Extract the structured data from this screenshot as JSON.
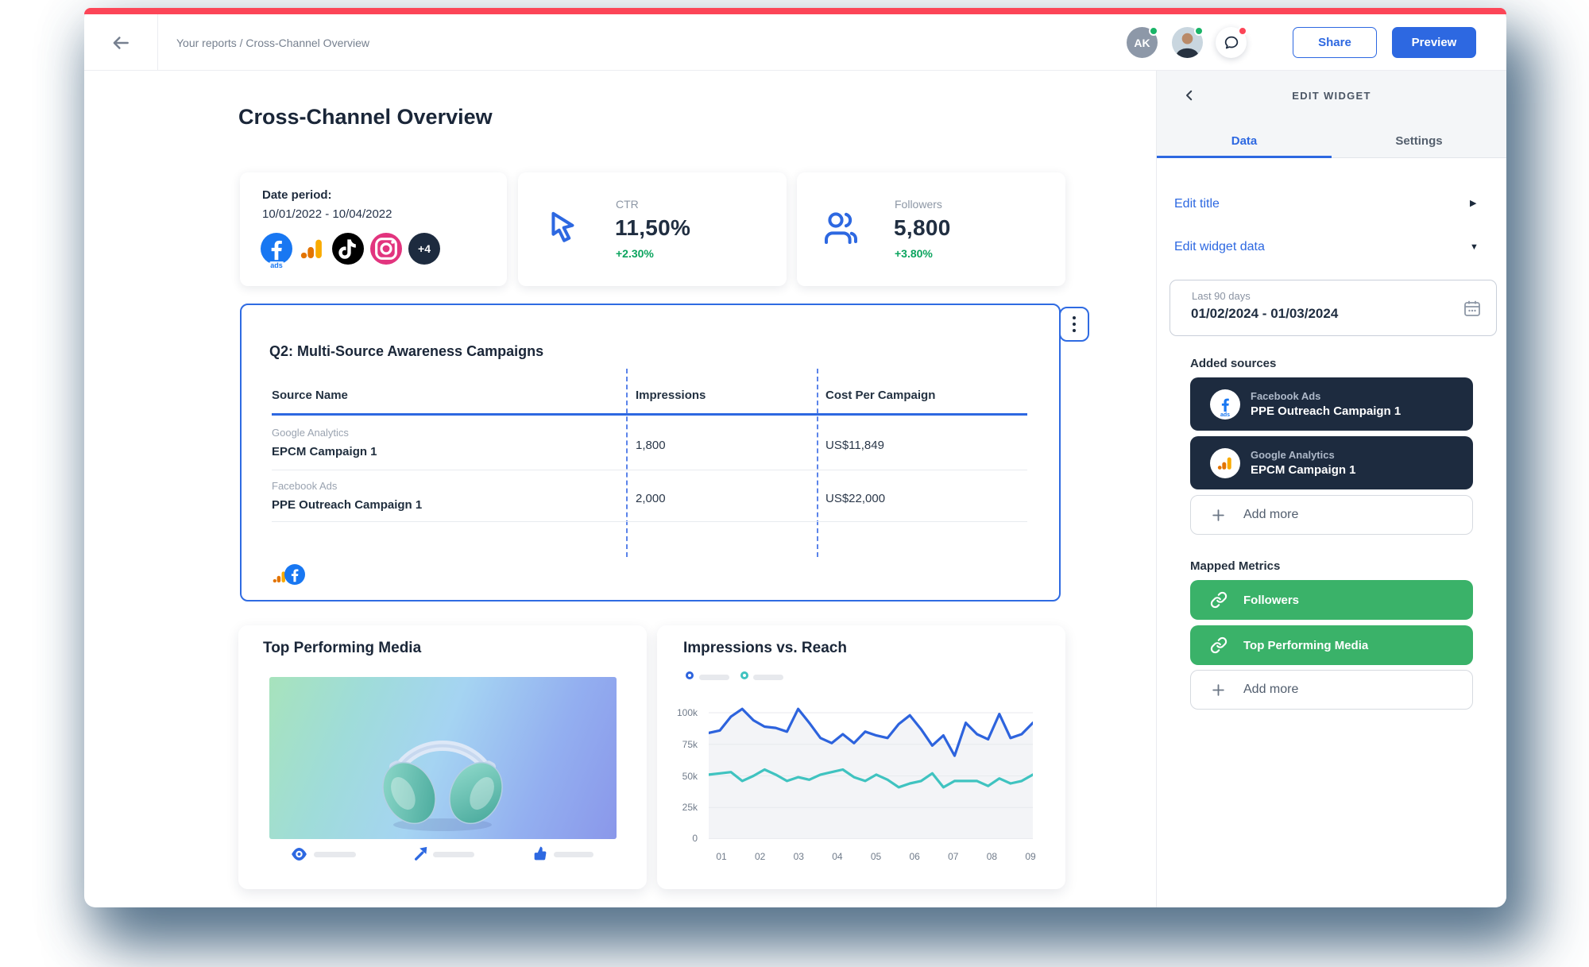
{
  "colors": {
    "brand_red": "#fc4557",
    "accent_blue": "#2d68e1",
    "dark_navy": "#1d2b3f",
    "positive_green": "#0ba45e",
    "metric_green": "#3ab269",
    "chart_blue": "#2d63dd",
    "chart_teal": "#3fc3c0"
  },
  "topbar": {
    "breadcrumb": "Your reports / Cross-Channel Overview",
    "avatar_initials": "AK",
    "share_label": "Share",
    "preview_label": "Preview"
  },
  "page": {
    "title": "Cross-Channel Overview"
  },
  "summary": {
    "date_period": {
      "label": "Date period:",
      "range": "10/01/2022 - 10/04/2022",
      "source_icons": [
        "facebook-ads",
        "google-analytics",
        "tiktok",
        "instagram"
      ],
      "fb_ads_suffix": "ads",
      "overflow_badge": "+4"
    },
    "ctr": {
      "label": "CTR",
      "value": "11,50%",
      "delta": "+2.30%",
      "icon": "cursor-icon"
    },
    "followers": {
      "label": "Followers",
      "value": "5,800",
      "delta": "+3.80%",
      "icon": "people-icon"
    }
  },
  "table_widget": {
    "title": "Q2: Multi-Source Awareness Campaigns",
    "columns": [
      "Source Name",
      "Impressions",
      "Cost Per Campaign"
    ],
    "rows": [
      {
        "source": "Google Analytics",
        "campaign": "EPCM Campaign 1",
        "impressions": "1,800",
        "cost": "US$11,849"
      },
      {
        "source": "Facebook Ads",
        "campaign": "PPE Outreach Campaign 1",
        "impressions": "2,000",
        "cost": "US$22,000"
      }
    ],
    "footer_source_icons": [
      "google-analytics",
      "facebook-ads"
    ]
  },
  "media_widget": {
    "title": "Top Performing Media",
    "stat_icons": [
      "eye-icon",
      "share-arrow-icon",
      "thumbs-up-icon"
    ]
  },
  "chart_widget": {
    "title": "Impressions vs. Reach"
  },
  "chart_data": {
    "type": "line",
    "title": "Impressions vs. Reach",
    "x_tick_labels": [
      "01",
      "02",
      "03",
      "04",
      "05",
      "06",
      "07",
      "08",
      "09"
    ],
    "ytick_labels": [
      "100k",
      "75k",
      "50k",
      "25k",
      "0"
    ],
    "ytick_values_k": [
      100,
      75,
      50,
      25,
      0
    ],
    "ylim_k": [
      0,
      110
    ],
    "grid": "horizontal",
    "legend": "top-left, unlabeled skeleton swatches",
    "series": [
      {
        "name": "Impressions",
        "color": "#2d63dd",
        "area_fill": "#f3f4f7",
        "values_k": [
          84,
          86,
          97,
          103,
          94,
          89,
          88,
          85,
          103,
          92,
          80,
          76,
          83,
          76,
          85,
          82,
          80,
          91,
          98,
          87,
          74,
          82,
          66,
          92,
          83,
          79,
          99,
          80,
          83,
          92
        ]
      },
      {
        "name": "Reach",
        "color": "#3fc3c0",
        "values_k": [
          51,
          52,
          53,
          46,
          50,
          55,
          51,
          46,
          49,
          47,
          51,
          53,
          55,
          49,
          46,
          51,
          47,
          41,
          44,
          46,
          52,
          41,
          46,
          46,
          46,
          42,
          48,
          44,
          46,
          51
        ]
      }
    ]
  },
  "sidebar": {
    "header": "EDIT WIDGET",
    "tabs": [
      {
        "label": "Data",
        "active": true
      },
      {
        "label": "Settings",
        "active": false
      }
    ],
    "edit_title_label": "Edit title",
    "edit_widget_data_label": "Edit widget data",
    "date_range": {
      "preset": "Last 90 days",
      "range": "01/02/2024 - 01/03/2024"
    },
    "added_sources_label": "Added sources",
    "sources": [
      {
        "platform": "Facebook Ads",
        "campaign": "PPE Outreach Campaign 1",
        "icon": "facebook-ads"
      },
      {
        "platform": "Google Analytics",
        "campaign": "EPCM Campaign 1",
        "icon": "google-analytics"
      }
    ],
    "add_more_label": "Add more",
    "mapped_metrics_label": "Mapped Metrics",
    "metrics": [
      {
        "label": "Followers"
      },
      {
        "label": "Top Performing Media"
      }
    ]
  }
}
